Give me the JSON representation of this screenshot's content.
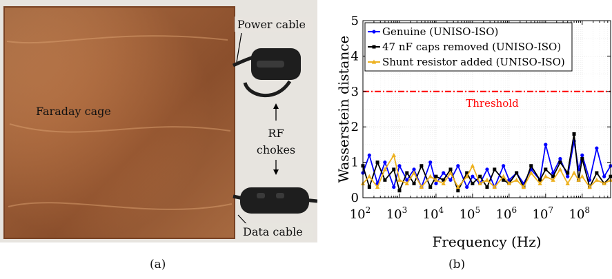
{
  "panel_a": {
    "caption": "(a)",
    "labels": {
      "faraday_cage": "Faraday cage",
      "power_cable": "Power cable",
      "rf_chokes_line1": "RF",
      "rf_chokes_line2": "chokes",
      "data_cable": "Data cable"
    },
    "colors": {
      "copper": "#b8774a",
      "copper_dark": "#8a4f2b",
      "background": "#e7e4df",
      "choke": "#1e1e1e"
    }
  },
  "panel_b": {
    "caption": "(b)"
  },
  "chart_data": {
    "type": "line",
    "xscale": "log",
    "xlabel": "Frequency (Hz)",
    "ylabel": "Wasserstein distance",
    "xlim": [
      100,
      600000000
    ],
    "ylim": [
      0,
      5
    ],
    "x_ticks": [
      {
        "value": 100,
        "base": "10",
        "exp": "2"
      },
      {
        "value": 1000,
        "base": "10",
        "exp": "3"
      },
      {
        "value": 10000,
        "base": "10",
        "exp": "4"
      },
      {
        "value": 100000,
        "base": "10",
        "exp": "5"
      },
      {
        "value": 1000000,
        "base": "10",
        "exp": "6"
      },
      {
        "value": 10000000,
        "base": "10",
        "exp": "7"
      },
      {
        "value": 100000000,
        "base": "10",
        "exp": "8"
      }
    ],
    "y_ticks": [
      0,
      1,
      2,
      3,
      4,
      5
    ],
    "grid": true,
    "legend_position": "top-right",
    "threshold": {
      "value": 3,
      "label": "Threshold",
      "color": "#ff0000"
    },
    "series": [
      {
        "name": "Genuine (UNISO-ISO)",
        "color": "#0000ff",
        "marker": "circle",
        "x": [
          100,
          150,
          250,
          400,
          700,
          1000,
          1600,
          2500,
          4000,
          7000,
          10000,
          16000,
          25000,
          40000,
          70000,
          100000,
          160000,
          250000,
          400000,
          700000,
          1000000,
          1600000,
          2500000,
          4000000,
          7000000,
          10000000,
          16000000,
          25000000,
          40000000,
          60000000,
          80000000,
          100000000,
          160000000,
          250000000,
          400000000,
          600000000
        ],
        "values": [
          0.7,
          1.2,
          0.4,
          1.0,
          0.3,
          0.9,
          0.5,
          0.8,
          0.3,
          1.0,
          0.4,
          0.7,
          0.5,
          0.9,
          0.3,
          0.6,
          0.4,
          0.8,
          0.3,
          0.9,
          0.5,
          0.7,
          0.4,
          0.8,
          0.5,
          1.5,
          0.7,
          1.1,
          0.6,
          1.6,
          0.8,
          1.2,
          0.5,
          1.4,
          0.6,
          0.9
        ]
      },
      {
        "name": "47 nF caps removed (UNISO-ISO)",
        "color": "#000000",
        "marker": "square",
        "x": [
          100,
          150,
          250,
          400,
          700,
          1000,
          1600,
          2500,
          4000,
          7000,
          10000,
          16000,
          25000,
          40000,
          70000,
          100000,
          160000,
          250000,
          400000,
          700000,
          1000000,
          1600000,
          2500000,
          4000000,
          7000000,
          10000000,
          16000000,
          25000000,
          40000000,
          60000000,
          80000000,
          100000000,
          160000000,
          250000000,
          400000000,
          600000000
        ],
        "values": [
          0.9,
          0.3,
          1.0,
          0.5,
          0.8,
          0.2,
          0.7,
          0.4,
          0.9,
          0.3,
          0.6,
          0.5,
          0.8,
          0.2,
          0.7,
          0.4,
          0.6,
          0.3,
          0.8,
          0.5,
          0.4,
          0.7,
          0.3,
          0.9,
          0.5,
          0.8,
          0.6,
          1.0,
          0.7,
          1.8,
          0.5,
          1.1,
          0.3,
          0.7,
          0.4,
          0.6
        ]
      },
      {
        "name": "Shunt resistor added (UNISO-ISO)",
        "color": "#edb120",
        "marker": "triangle",
        "x": [
          100,
          150,
          250,
          400,
          700,
          1000,
          1600,
          2500,
          4000,
          7000,
          10000,
          16000,
          25000,
          40000,
          70000,
          100000,
          160000,
          250000,
          400000,
          700000,
          1000000,
          1600000,
          2500000,
          4000000,
          7000000,
          10000000,
          16000000,
          25000000,
          40000000,
          60000000,
          80000000,
          100000000,
          160000000,
          250000000,
          400000000,
          600000000
        ],
        "values": [
          0.4,
          0.6,
          0.3,
          0.8,
          1.2,
          0.5,
          0.4,
          0.7,
          0.3,
          0.6,
          0.5,
          0.4,
          0.7,
          0.3,
          0.6,
          0.9,
          0.4,
          0.5,
          0.3,
          0.6,
          0.4,
          0.5,
          0.3,
          0.7,
          0.4,
          0.6,
          0.5,
          0.8,
          0.4,
          0.7,
          0.5,
          0.6,
          0.3,
          0.5,
          0.4,
          0.5
        ]
      }
    ]
  }
}
